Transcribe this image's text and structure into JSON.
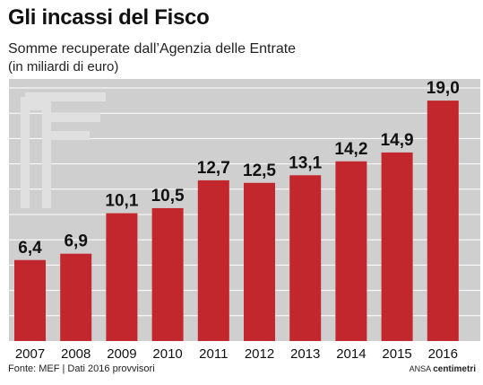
{
  "title": "Gli incassi del Fisco",
  "subtitle": "Somme recuperate dall’Agenzia delle Entrate",
  "unit_note": "(in miliardi di euro)",
  "source": "Fonte: MEF | Dati 2016 provvisori",
  "credit": {
    "prefix": "ANSA",
    "brand": "centimetri"
  },
  "colors": {
    "bar": "#c1272d",
    "plot_background": "#cfcfcf",
    "gridline": "#ffffff",
    "text": "#111111",
    "watermark": "#e0e0e0"
  },
  "watermark_icon": "euro-sign-icon",
  "chart_data": {
    "type": "bar",
    "title": "Gli incassi del Fisco",
    "subtitle": "Somme recuperate dall’Agenzia delle Entrate",
    "xlabel": "",
    "ylabel": "",
    "categories": [
      "2007",
      "2008",
      "2009",
      "2010",
      "2011",
      "2012",
      "2013",
      "2014",
      "2015",
      "2016"
    ],
    "values": [
      6.4,
      6.9,
      10.1,
      10.5,
      12.7,
      12.5,
      13.1,
      14.2,
      14.9,
      19.0
    ],
    "value_labels": [
      "6,4",
      "6,9",
      "10,1",
      "10,5",
      "12,7",
      "12,5",
      "13,1",
      "14,2",
      "14,9",
      "19,0"
    ],
    "ylim": [
      0,
      20
    ],
    "grid": true,
    "legend": "none"
  }
}
